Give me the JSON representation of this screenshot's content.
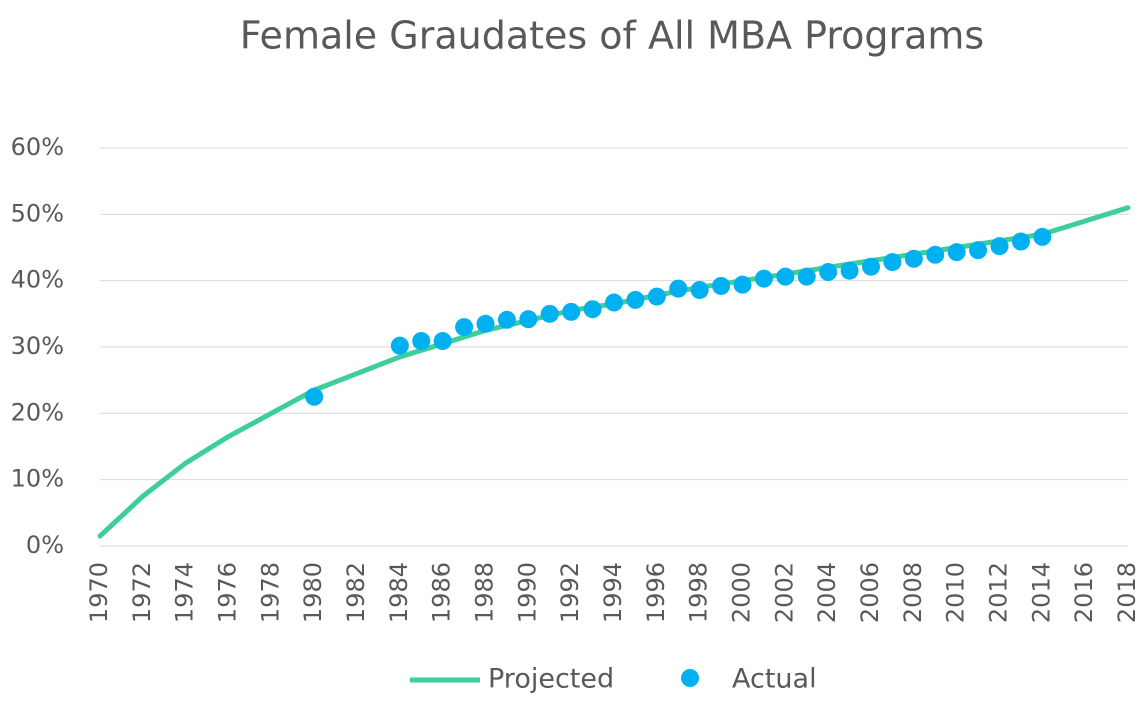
{
  "chart_data": {
    "type": "line",
    "title": "Female Graudates of All MBA Programs",
    "xlim": [
      1970,
      2018
    ],
    "xticks": [
      1970,
      1972,
      1974,
      1976,
      1978,
      1980,
      1982,
      1984,
      1986,
      1988,
      1990,
      1992,
      1994,
      1996,
      1998,
      2000,
      2002,
      2004,
      2006,
      2008,
      2010,
      2012,
      2014,
      2016,
      2018
    ],
    "ylim": [
      0,
      60
    ],
    "yticks": [
      {
        "value": 0,
        "label": "0%"
      },
      {
        "value": 10,
        "label": "10%"
      },
      {
        "value": 20,
        "label": "20%"
      },
      {
        "value": 30,
        "label": "30%"
      },
      {
        "value": 40,
        "label": "40%"
      },
      {
        "value": 50,
        "label": "50%"
      },
      {
        "value": 60,
        "label": "60%"
      }
    ],
    "grid": true,
    "legend": "bottom",
    "series": [
      {
        "name": "Projected",
        "color": "#3ecf99",
        "style": "line",
        "x": [
          1970,
          1972,
          1974,
          1976,
          1978,
          1980,
          1982,
          1984,
          1986,
          1988,
          1990,
          1992,
          1994,
          1996,
          1998,
          2000,
          2002,
          2004,
          2006,
          2008,
          2010,
          2012,
          2014,
          2016,
          2018
        ],
        "values": [
          1.5,
          7.5,
          12.5,
          16.5,
          20,
          23.5,
          26,
          28.5,
          30.5,
          32.5,
          34,
          35.5,
          36.5,
          37.8,
          39,
          40,
          41,
          42,
          43,
          44,
          45,
          46,
          47,
          49,
          51
        ]
      },
      {
        "name": "Actual",
        "color": "#00b0f0",
        "style": "marker",
        "x": [
          1980,
          1984,
          1985,
          1986,
          1987,
          1988,
          1989,
          1990,
          1991,
          1992,
          1993,
          1994,
          1995,
          1996,
          1997,
          1998,
          1999,
          2000,
          2001,
          2002,
          2003,
          2004,
          2005,
          2006,
          2007,
          2008,
          2009,
          2010,
          2011,
          2012,
          2013,
          2014
        ],
        "values": [
          22.5,
          30.2,
          30.9,
          30.9,
          33.0,
          33.5,
          34.1,
          34.2,
          35.0,
          35.3,
          35.7,
          36.7,
          37.1,
          37.6,
          38.8,
          38.6,
          39.2,
          39.4,
          40.3,
          40.6,
          40.6,
          41.3,
          41.5,
          42.1,
          42.8,
          43.3,
          43.9,
          44.3,
          44.6,
          45.2,
          45.9,
          46.6
        ]
      }
    ]
  }
}
